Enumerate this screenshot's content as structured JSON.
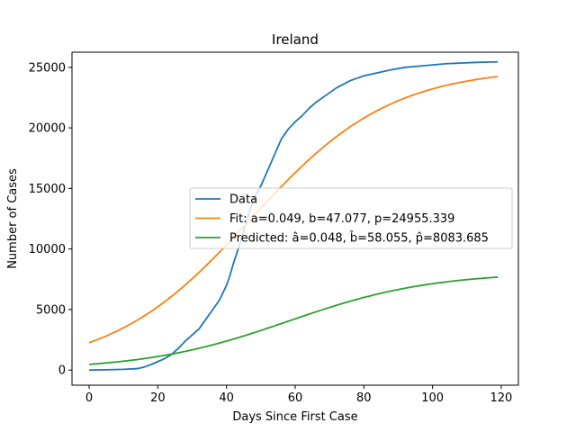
{
  "chart_data": {
    "type": "line",
    "title": "Ireland",
    "xlabel": "Days Since First Case",
    "ylabel": "Number of Cases",
    "xlim": [
      -5,
      125
    ],
    "ylim": [
      -1250,
      26250
    ],
    "xticks": [
      0,
      20,
      40,
      60,
      80,
      100,
      120
    ],
    "yticks": [
      0,
      5000,
      10000,
      15000,
      20000,
      25000
    ],
    "grid": false,
    "legend_position": "center-right",
    "series": [
      {
        "name": "Data",
        "color": "#1f77b4",
        "x": [
          0,
          5,
          10,
          14,
          16,
          18,
          20,
          22,
          24,
          26,
          28,
          30,
          32,
          34,
          36,
          38,
          40,
          41,
          42,
          44,
          46,
          48,
          50,
          52,
          54,
          56,
          58,
          60,
          62,
          64,
          66,
          68,
          70,
          72,
          74,
          76,
          78,
          80,
          84,
          88,
          92,
          96,
          100,
          104,
          108,
          112,
          116,
          119
        ],
        "y": [
          0,
          20,
          60,
          120,
          250,
          450,
          700,
          950,
          1300,
          1800,
          2400,
          2900,
          3400,
          4200,
          5000,
          5800,
          7000,
          7800,
          8800,
          10500,
          12500,
          14200,
          15200,
          16500,
          17800,
          19100,
          19900,
          20500,
          21000,
          21600,
          22100,
          22500,
          22900,
          23300,
          23600,
          23900,
          24100,
          24300,
          24550,
          24800,
          25000,
          25100,
          25200,
          25300,
          25350,
          25400,
          25430,
          25450
        ]
      },
      {
        "name": "Fit: a=0.049, b=47.077, p=24955.339",
        "color": "#ff7f0e",
        "model": {
          "a": 0.049,
          "b": 47.077,
          "p": 24955.339
        },
        "x_range": [
          0,
          119
        ]
      },
      {
        "name": "Predicted: â=0.048, b̂=58.055, p̂=8083.685",
        "color": "#2ca02c",
        "model": {
          "a": 0.048,
          "b": 58.055,
          "p": 8083.685
        },
        "x_range": [
          0,
          119
        ]
      }
    ]
  }
}
